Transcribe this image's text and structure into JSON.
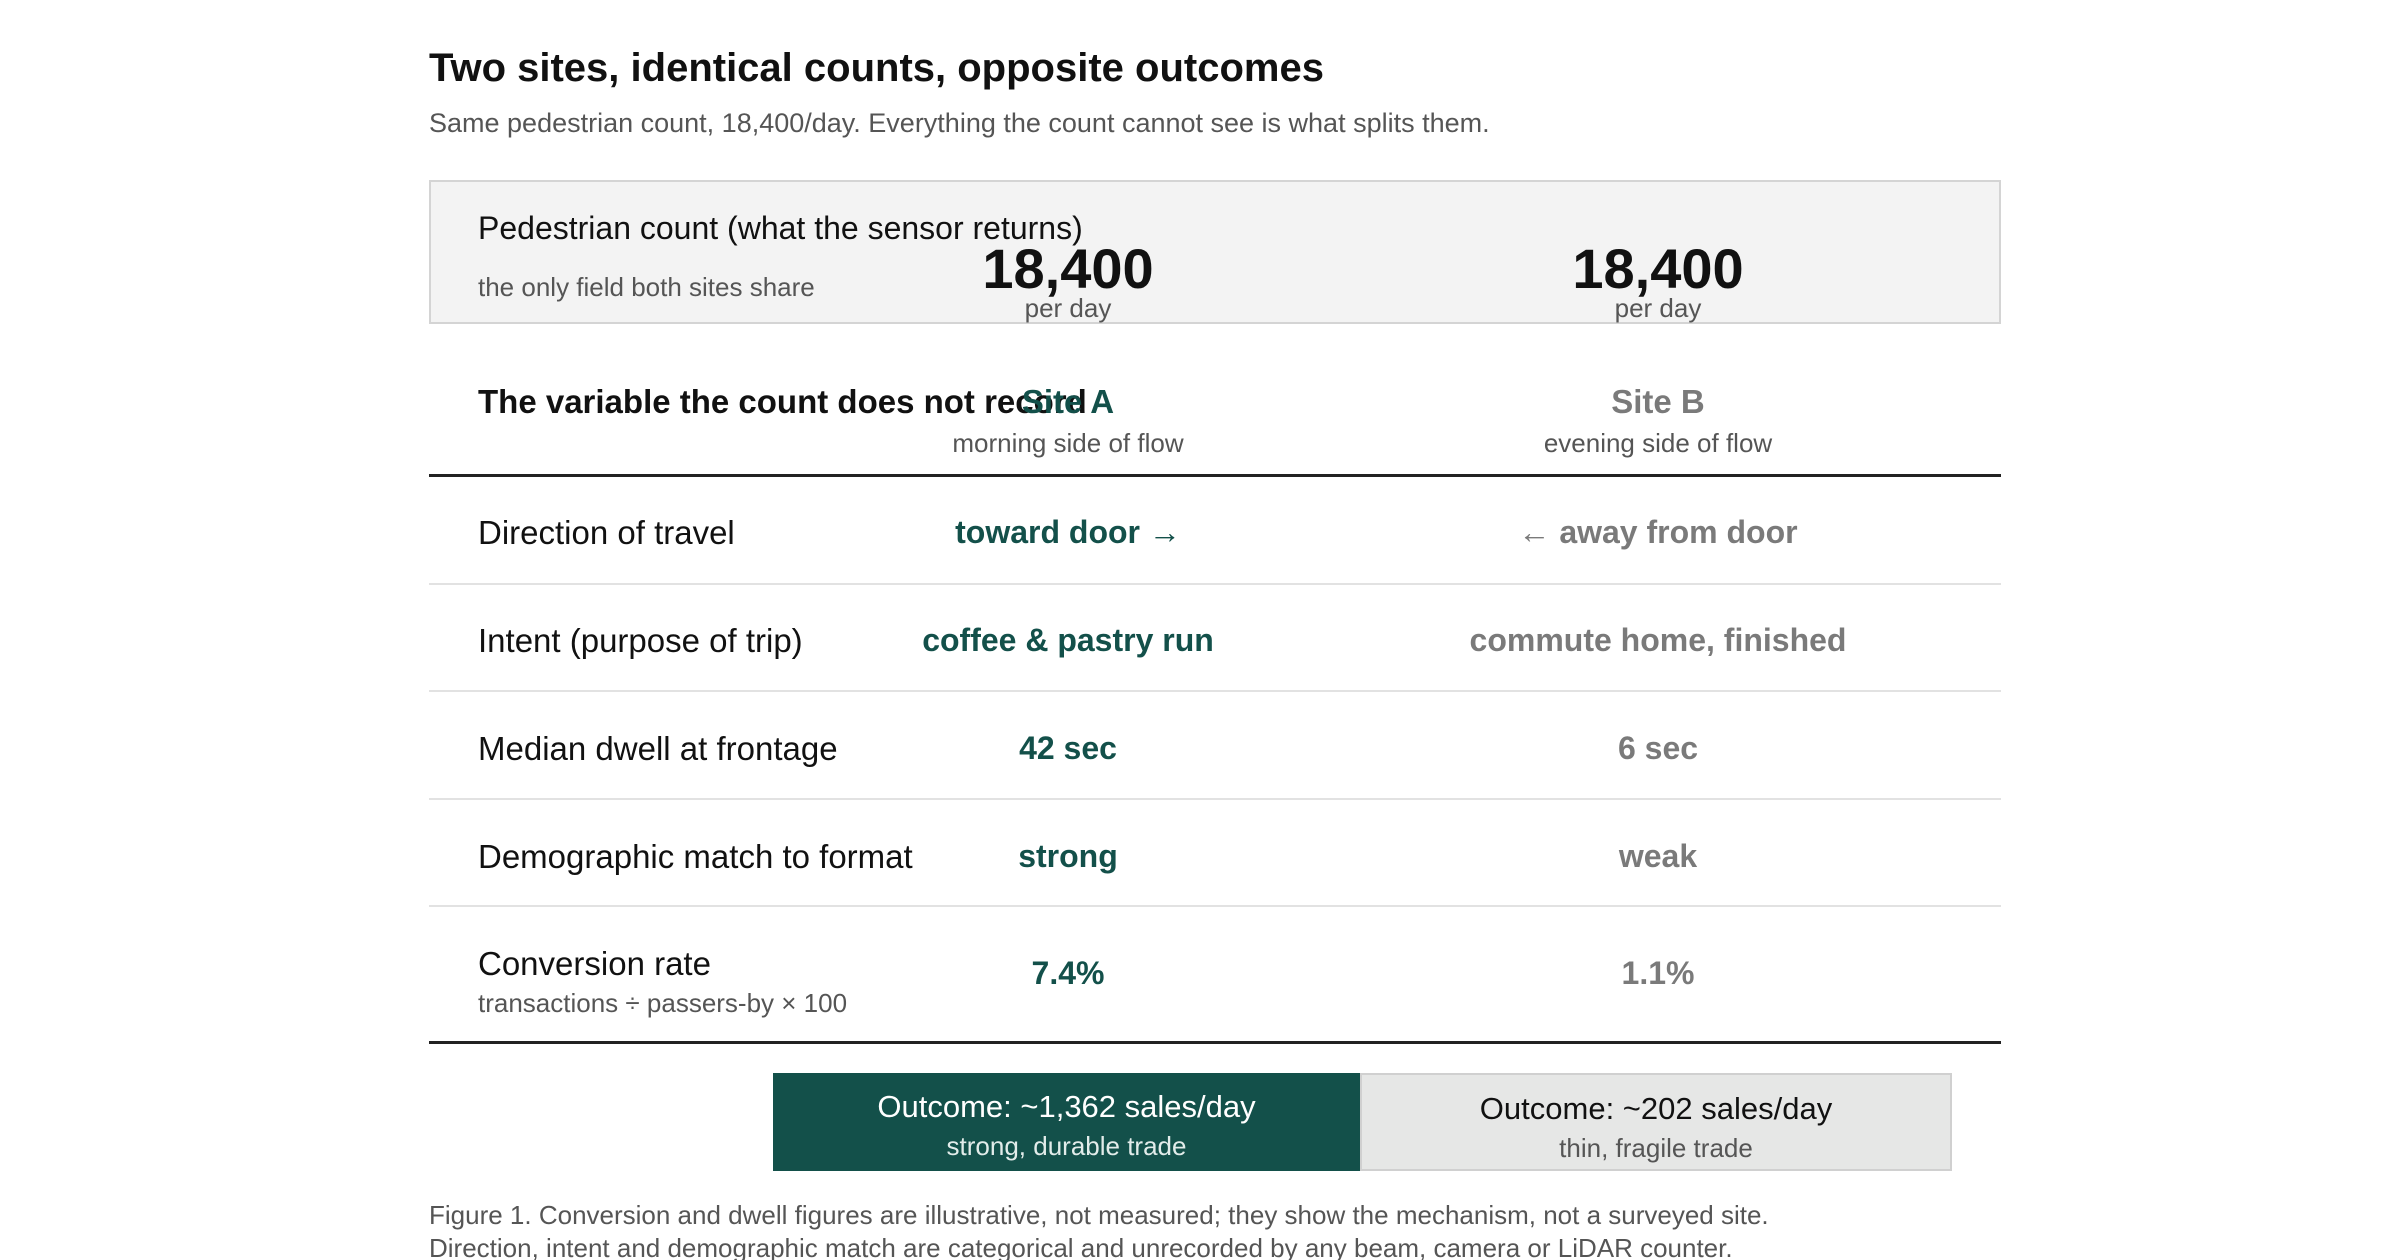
{
  "title": "Two sites, identical counts, opposite outcomes",
  "subtitle": "Same pedestrian count, 18,400/day. Everything the count cannot see is what splits them.",
  "count_box": {
    "label": "Pedestrian count (what the sensor returns)",
    "sub": "the only field both sites share",
    "site_a_value": "18,400",
    "site_a_unit": "per day",
    "site_b_value": "18,400",
    "site_b_unit": "per day"
  },
  "table": {
    "header_label": "The variable the count does not record",
    "site_a": {
      "name": "Site A",
      "sub": "morning side of flow"
    },
    "site_b": {
      "name": "Site B",
      "sub": "evening side of flow"
    },
    "rows": [
      {
        "label": "Direction of travel",
        "sub": "",
        "a": "toward door →",
        "b": "← away from door"
      },
      {
        "label": "Intent (purpose of trip)",
        "sub": "",
        "a": "coffee & pastry run",
        "b": "commute home, finished"
      },
      {
        "label": "Median dwell at frontage",
        "sub": "",
        "a": "42 sec",
        "b": "6 sec"
      },
      {
        "label": "Demographic match to format",
        "sub": "",
        "a": "strong",
        "b": "weak"
      },
      {
        "label": "Conversion rate",
        "sub": "transactions ÷ passers-by × 100",
        "a": "7.4%",
        "b": "1.1%"
      }
    ]
  },
  "outcomes": {
    "a": {
      "title": "Outcome: ~1,362 sales/day",
      "sub": "strong, durable trade"
    },
    "b": {
      "title": "Outcome: ~202 sales/day",
      "sub": "thin, fragile trade"
    }
  },
  "caption": {
    "line1": "Figure 1. Conversion and dwell figures are illustrative, not measured; they show the mechanism, not a surveyed site.",
    "line2": "Direction, intent and demographic match are categorical and unrecorded by any beam, camera or LiDAR counter."
  },
  "colors": {
    "site_a": "#13504a",
    "site_b": "#7a7a7a",
    "panel_bg": "#f3f3f3",
    "outcome_b_bg": "#e6e7e6"
  }
}
